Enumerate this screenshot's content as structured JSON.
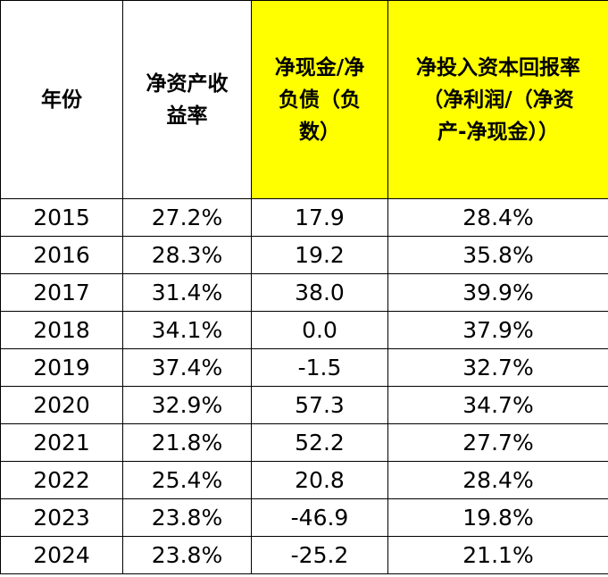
{
  "table": {
    "header": [
      [
        "年份"
      ],
      [
        "净资产收",
        "益率"
      ],
      [
        "净现金/净",
        "负债（负",
        "数）"
      ],
      [
        "净投入资本回报率",
        "（净利润/（净资",
        "产-净现金））"
      ]
    ],
    "highlighted_columns": [
      2,
      3
    ],
    "highlight_color": "#ffff00",
    "rows": [
      [
        "2015",
        "27.2%",
        "17.9",
        "28.4%"
      ],
      [
        "2016",
        "28.3%",
        "19.2",
        "35.8%"
      ],
      [
        "2017",
        "31.4%",
        "38.0",
        "39.9%"
      ],
      [
        "2018",
        "34.1%",
        "0.0",
        "37.9%"
      ],
      [
        "2019",
        "37.4%",
        "-1.5",
        "32.7%"
      ],
      [
        "2020",
        "32.9%",
        "57.3",
        "34.7%"
      ],
      [
        "2021",
        "21.8%",
        "52.2",
        "27.7%"
      ],
      [
        "2022",
        "25.4%",
        "20.8",
        "28.4%"
      ],
      [
        "2023",
        "23.8%",
        "-46.9",
        "19.8%"
      ],
      [
        "2024",
        "23.8%",
        "-25.2",
        "21.1%"
      ]
    ]
  }
}
